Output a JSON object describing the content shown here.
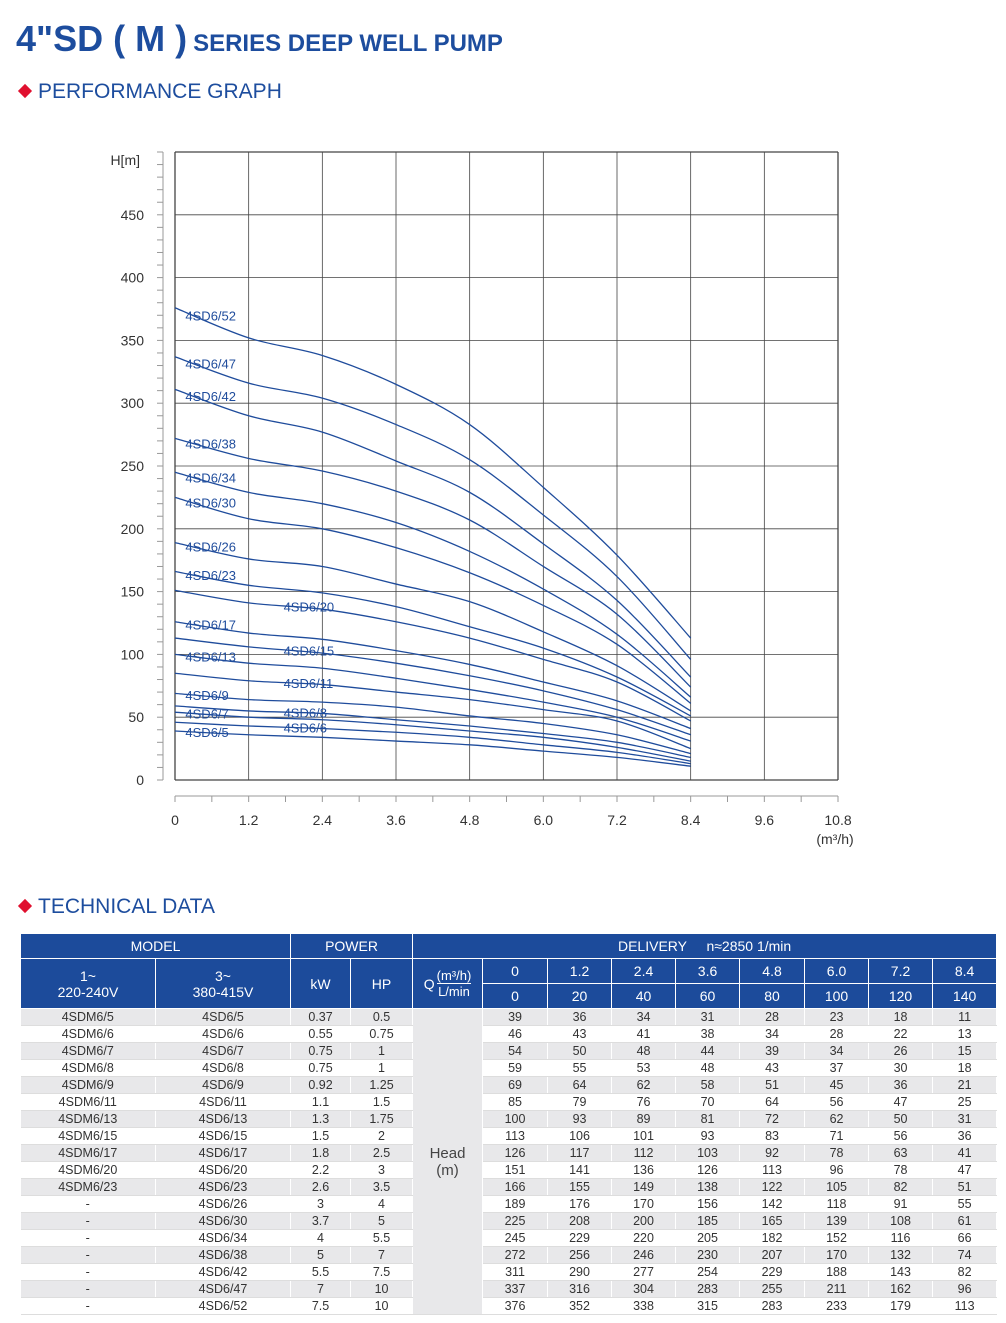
{
  "header": {
    "title_main": "4\"SD ( M )",
    "title_sub": "SERIES DEEP WELL PUMP"
  },
  "sections": {
    "graph": "PERFORMANCE GRAPH",
    "tech": "TECHNICAL DATA"
  },
  "colors": {
    "brand": "#1d4d9e",
    "accent": "#e0102f",
    "curve": "#1f4c9c"
  },
  "chart_data": {
    "type": "line",
    "ylabel": "H[m]",
    "xlabel": "(m³/h)",
    "xlim": [
      0,
      10.8
    ],
    "ylim": [
      0,
      500
    ],
    "xticks": [
      "0",
      "1.2",
      "2.4",
      "3.6",
      "4.8",
      "6.0",
      "7.2",
      "8.4",
      "9.6",
      "10.8"
    ],
    "yticks": [
      "0",
      "50",
      "100",
      "150",
      "200",
      "250",
      "300",
      "350",
      "400",
      "450"
    ],
    "grid": true,
    "x": [
      0,
      1.2,
      2.4,
      3.6,
      4.8,
      6.0,
      7.2,
      8.4
    ],
    "series": [
      {
        "name": "4SD6/5",
        "values": [
          39,
          36,
          34,
          31,
          28,
          23,
          18,
          11
        ]
      },
      {
        "name": "4SD6/6",
        "values": [
          46,
          43,
          41,
          38,
          34,
          28,
          22,
          13
        ]
      },
      {
        "name": "4SD6/7",
        "values": [
          54,
          50,
          48,
          44,
          39,
          34,
          26,
          15
        ]
      },
      {
        "name": "4SD6/8",
        "values": [
          59,
          55,
          53,
          48,
          43,
          37,
          30,
          18
        ]
      },
      {
        "name": "4SD6/9",
        "values": [
          69,
          64,
          62,
          58,
          51,
          45,
          36,
          21
        ]
      },
      {
        "name": "4SD6/11",
        "values": [
          85,
          79,
          76,
          70,
          64,
          56,
          47,
          25
        ]
      },
      {
        "name": "4SD6/13",
        "values": [
          100,
          93,
          89,
          81,
          72,
          62,
          50,
          31
        ]
      },
      {
        "name": "4SD6/15",
        "values": [
          113,
          106,
          101,
          93,
          83,
          71,
          56,
          36
        ]
      },
      {
        "name": "4SD6/17",
        "values": [
          126,
          117,
          112,
          103,
          92,
          78,
          63,
          41
        ]
      },
      {
        "name": "4SD6/20",
        "values": [
          151,
          141,
          136,
          126,
          113,
          96,
          78,
          47
        ]
      },
      {
        "name": "4SD6/23",
        "values": [
          166,
          155,
          149,
          138,
          122,
          105,
          82,
          51
        ]
      },
      {
        "name": "4SD6/26",
        "values": [
          189,
          176,
          170,
          156,
          142,
          118,
          91,
          55
        ]
      },
      {
        "name": "4SD6/30",
        "values": [
          225,
          208,
          200,
          185,
          165,
          139,
          108,
          61
        ]
      },
      {
        "name": "4SD6/34",
        "values": [
          245,
          229,
          220,
          205,
          182,
          152,
          116,
          66
        ]
      },
      {
        "name": "4SD6/38",
        "values": [
          272,
          256,
          246,
          230,
          207,
          170,
          132,
          74
        ]
      },
      {
        "name": "4SD6/42",
        "values": [
          311,
          290,
          277,
          254,
          229,
          188,
          143,
          82
        ]
      },
      {
        "name": "4SD6/47",
        "values": [
          337,
          316,
          304,
          283,
          255,
          211,
          162,
          96
        ]
      },
      {
        "name": "4SD6/52",
        "values": [
          376,
          352,
          338,
          315,
          283,
          233,
          179,
          113
        ]
      }
    ]
  },
  "table": {
    "h_model": "MODEL",
    "h_power": "POWER",
    "h_delivery": "DELIVERY",
    "h_speed": "n≈2850 1/min",
    "h_1ph_a": "1~",
    "h_1ph_b": "220-240V",
    "h_3ph_a": "3~",
    "h_3ph_b": "380-415V",
    "h_kw": "kW",
    "h_hp": "HP",
    "h_q": "Q",
    "h_q_m3h": "(m³/h)",
    "h_q_lmin": "L/min",
    "q_m3h": [
      "0",
      "1.2",
      "2.4",
      "3.6",
      "4.8",
      "6.0",
      "7.2",
      "8.4"
    ],
    "q_lmin": [
      "0",
      "20",
      "40",
      "60",
      "80",
      "100",
      "120",
      "140"
    ],
    "head_label_a": "Head",
    "head_label_b": "(m)",
    "rows": [
      [
        "4SDM6/5",
        "4SD6/5",
        "0.37",
        "0.5",
        [
          "39",
          "36",
          "34",
          "31",
          "28",
          "23",
          "18",
          "11"
        ]
      ],
      [
        "4SDM6/6",
        "4SD6/6",
        "0.55",
        "0.75",
        [
          "46",
          "43",
          "41",
          "38",
          "34",
          "28",
          "22",
          "13"
        ]
      ],
      [
        "4SDM6/7",
        "4SD6/7",
        "0.75",
        "1",
        [
          "54",
          "50",
          "48",
          "44",
          "39",
          "34",
          "26",
          "15"
        ]
      ],
      [
        "4SDM6/8",
        "4SD6/8",
        "0.75",
        "1",
        [
          "59",
          "55",
          "53",
          "48",
          "43",
          "37",
          "30",
          "18"
        ]
      ],
      [
        "4SDM6/9",
        "4SD6/9",
        "0.92",
        "1.25",
        [
          "69",
          "64",
          "62",
          "58",
          "51",
          "45",
          "36",
          "21"
        ]
      ],
      [
        "4SDM6/11",
        "4SD6/11",
        "1.1",
        "1.5",
        [
          "85",
          "79",
          "76",
          "70",
          "64",
          "56",
          "47",
          "25"
        ]
      ],
      [
        "4SDM6/13",
        "4SD6/13",
        "1.3",
        "1.75",
        [
          "100",
          "93",
          "89",
          "81",
          "72",
          "62",
          "50",
          "31"
        ]
      ],
      [
        "4SDM6/15",
        "4SD6/15",
        "1.5",
        "2",
        [
          "113",
          "106",
          "101",
          "93",
          "83",
          "71",
          "56",
          "36"
        ]
      ],
      [
        "4SDM6/17",
        "4SD6/17",
        "1.8",
        "2.5",
        [
          "126",
          "117",
          "112",
          "103",
          "92",
          "78",
          "63",
          "41"
        ]
      ],
      [
        "4SDM6/20",
        "4SD6/20",
        "2.2",
        "3",
        [
          "151",
          "141",
          "136",
          "126",
          "113",
          "96",
          "78",
          "47"
        ]
      ],
      [
        "4SDM6/23",
        "4SD6/23",
        "2.6",
        "3.5",
        [
          "166",
          "155",
          "149",
          "138",
          "122",
          "105",
          "82",
          "51"
        ]
      ],
      [
        "-",
        "4SD6/26",
        "3",
        "4",
        [
          "189",
          "176",
          "170",
          "156",
          "142",
          "118",
          "91",
          "55"
        ]
      ],
      [
        "-",
        "4SD6/30",
        "3.7",
        "5",
        [
          "225",
          "208",
          "200",
          "185",
          "165",
          "139",
          "108",
          "61"
        ]
      ],
      [
        "-",
        "4SD6/34",
        "4",
        "5.5",
        [
          "245",
          "229",
          "220",
          "205",
          "182",
          "152",
          "116",
          "66"
        ]
      ],
      [
        "-",
        "4SD6/38",
        "5",
        "7",
        [
          "272",
          "256",
          "246",
          "230",
          "207",
          "170",
          "132",
          "74"
        ]
      ],
      [
        "-",
        "4SD6/42",
        "5.5",
        "7.5",
        [
          "311",
          "290",
          "277",
          "254",
          "229",
          "188",
          "143",
          "82"
        ]
      ],
      [
        "-",
        "4SD6/47",
        "7",
        "10",
        [
          "337",
          "316",
          "304",
          "283",
          "255",
          "211",
          "162",
          "96"
        ]
      ],
      [
        "-",
        "4SD6/52",
        "7.5",
        "10",
        [
          "376",
          "352",
          "338",
          "315",
          "283",
          "233",
          "179",
          "113"
        ]
      ]
    ]
  }
}
